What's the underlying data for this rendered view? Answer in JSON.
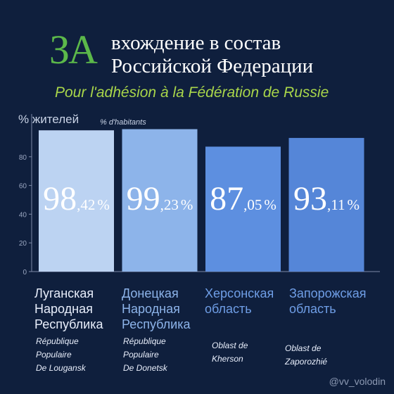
{
  "header": {
    "title_big": "ЗА",
    "title_line1": "вхождение в состав",
    "title_line2": "Российской Федерации",
    "subtitle_fr": "Pour l'adhésion à la Fédération de Russie"
  },
  "axis": {
    "ylabel_ru": "% жителей",
    "ylabel_fr": "% d'habitants"
  },
  "watermark": "@vv_volodin",
  "colors": {
    "background": "#0f1f3d",
    "accent_green": "#5cb84a",
    "subtitle_green": "#a9d64a"
  },
  "chart_data": {
    "type": "bar",
    "categories": [
      "Луганская Народная Республика",
      "Донецкая Народная Республика",
      "Херсонская область",
      "Запорожская область"
    ],
    "values": [
      98.42,
      99.23,
      87.05,
      93.11
    ],
    "value_labels": [
      {
        "int": "98",
        "dec": ",42",
        "pct": "%"
      },
      {
        "int": "99",
        "dec": ",23",
        "pct": "%"
      },
      {
        "int": "87",
        "dec": ",05",
        "pct": "%"
      },
      {
        "int": "93",
        "dec": ",11",
        "pct": "%"
      }
    ],
    "bar_colors": [
      "#bcd3f2",
      "#8db4ea",
      "#5d8fe0",
      "#5586d8"
    ],
    "category_colors": [
      "#e8eefb",
      "#8db4ea",
      "#6f9ee6",
      "#6f9ee6"
    ],
    "ylim": [
      0,
      100
    ],
    "yticks": [
      0,
      20,
      40,
      60,
      80
    ],
    "grid": false,
    "legend": "none",
    "categories_ru": [
      "Луганская\nНародная\nРеспублика",
      "Донецкая\nНародная\nРеспублика",
      "Херсонская\nобласть",
      "Запорожская\nобласть"
    ],
    "categories_fr": [
      "République\nPopulaire\nDe Lougansk",
      "République\nPopulaire\nDe Donetsk",
      "Oblast de\nKherson",
      "Oblast de\nZaporozhié"
    ]
  }
}
